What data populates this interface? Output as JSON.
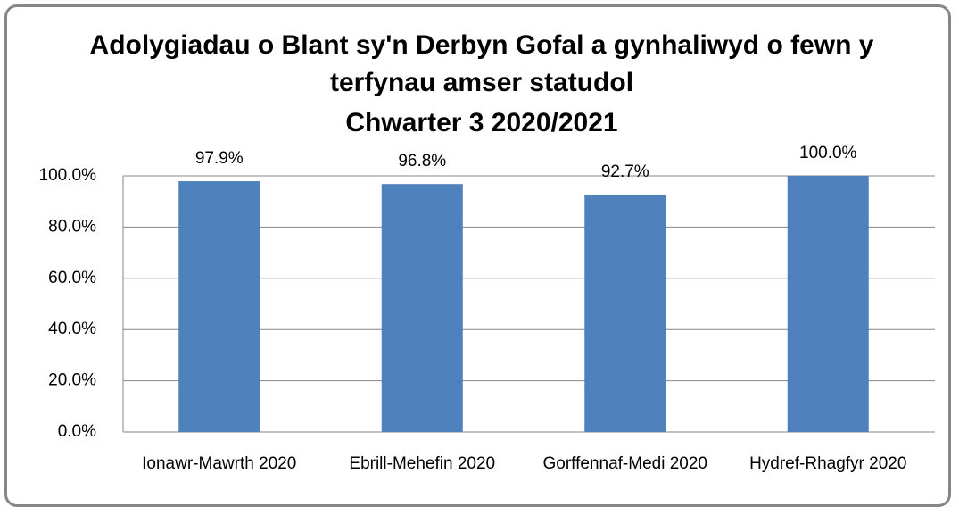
{
  "chart_data": {
    "type": "bar",
    "title": "Adolygiadau o Blant sy'n Derbyn Gofal a gynhaliwyd o fewn y terfynau amser statudol",
    "subtitle": "Chwarter 3  2020/2021",
    "categories": [
      "Ionawr-Mawrth 2020",
      "Ebrill-Mehefin 2020",
      "Gorffennaf-Medi 2020",
      "Hydref-Rhagfyr 2020"
    ],
    "values": [
      97.9,
      96.8,
      92.7,
      100.0
    ],
    "value_labels": [
      "97.9%",
      "96.8%",
      "92.7%",
      "100.0%"
    ],
    "color": "#4f81bd",
    "ylim": [
      0,
      100
    ],
    "yticks": [
      {
        "value": 0,
        "label": "0.0%"
      },
      {
        "value": 20,
        "label": "20.0%"
      },
      {
        "value": 40,
        "label": "40.0%"
      },
      {
        "value": 60,
        "label": "60.0%"
      },
      {
        "value": 80,
        "label": "80.0%"
      },
      {
        "value": 100,
        "label": "100.0%"
      }
    ],
    "grid": true
  }
}
